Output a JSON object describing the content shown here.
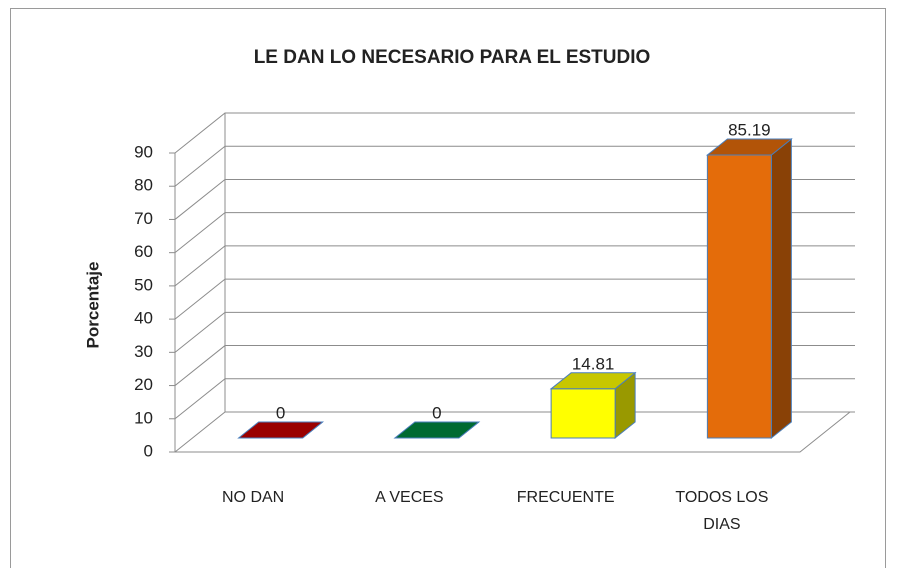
{
  "chart_data": {
    "type": "bar3d",
    "title": "LE DAN LO NECESARIO PARA EL ESTUDIO",
    "y_label": "Porcentaje",
    "categories": [
      "NO DAN",
      "A VECES",
      "FRECUENTE",
      "TODOS LOS DIAS"
    ],
    "values": [
      0,
      0,
      14.81,
      85.19
    ],
    "colors": [
      "#c00000",
      "#00843d",
      "#ffff00",
      "#e46c0a"
    ],
    "ylim": [
      0,
      90
    ],
    "yticks": [
      0,
      10,
      20,
      30,
      40,
      50,
      60,
      70,
      80,
      90
    ],
    "grid": true
  }
}
